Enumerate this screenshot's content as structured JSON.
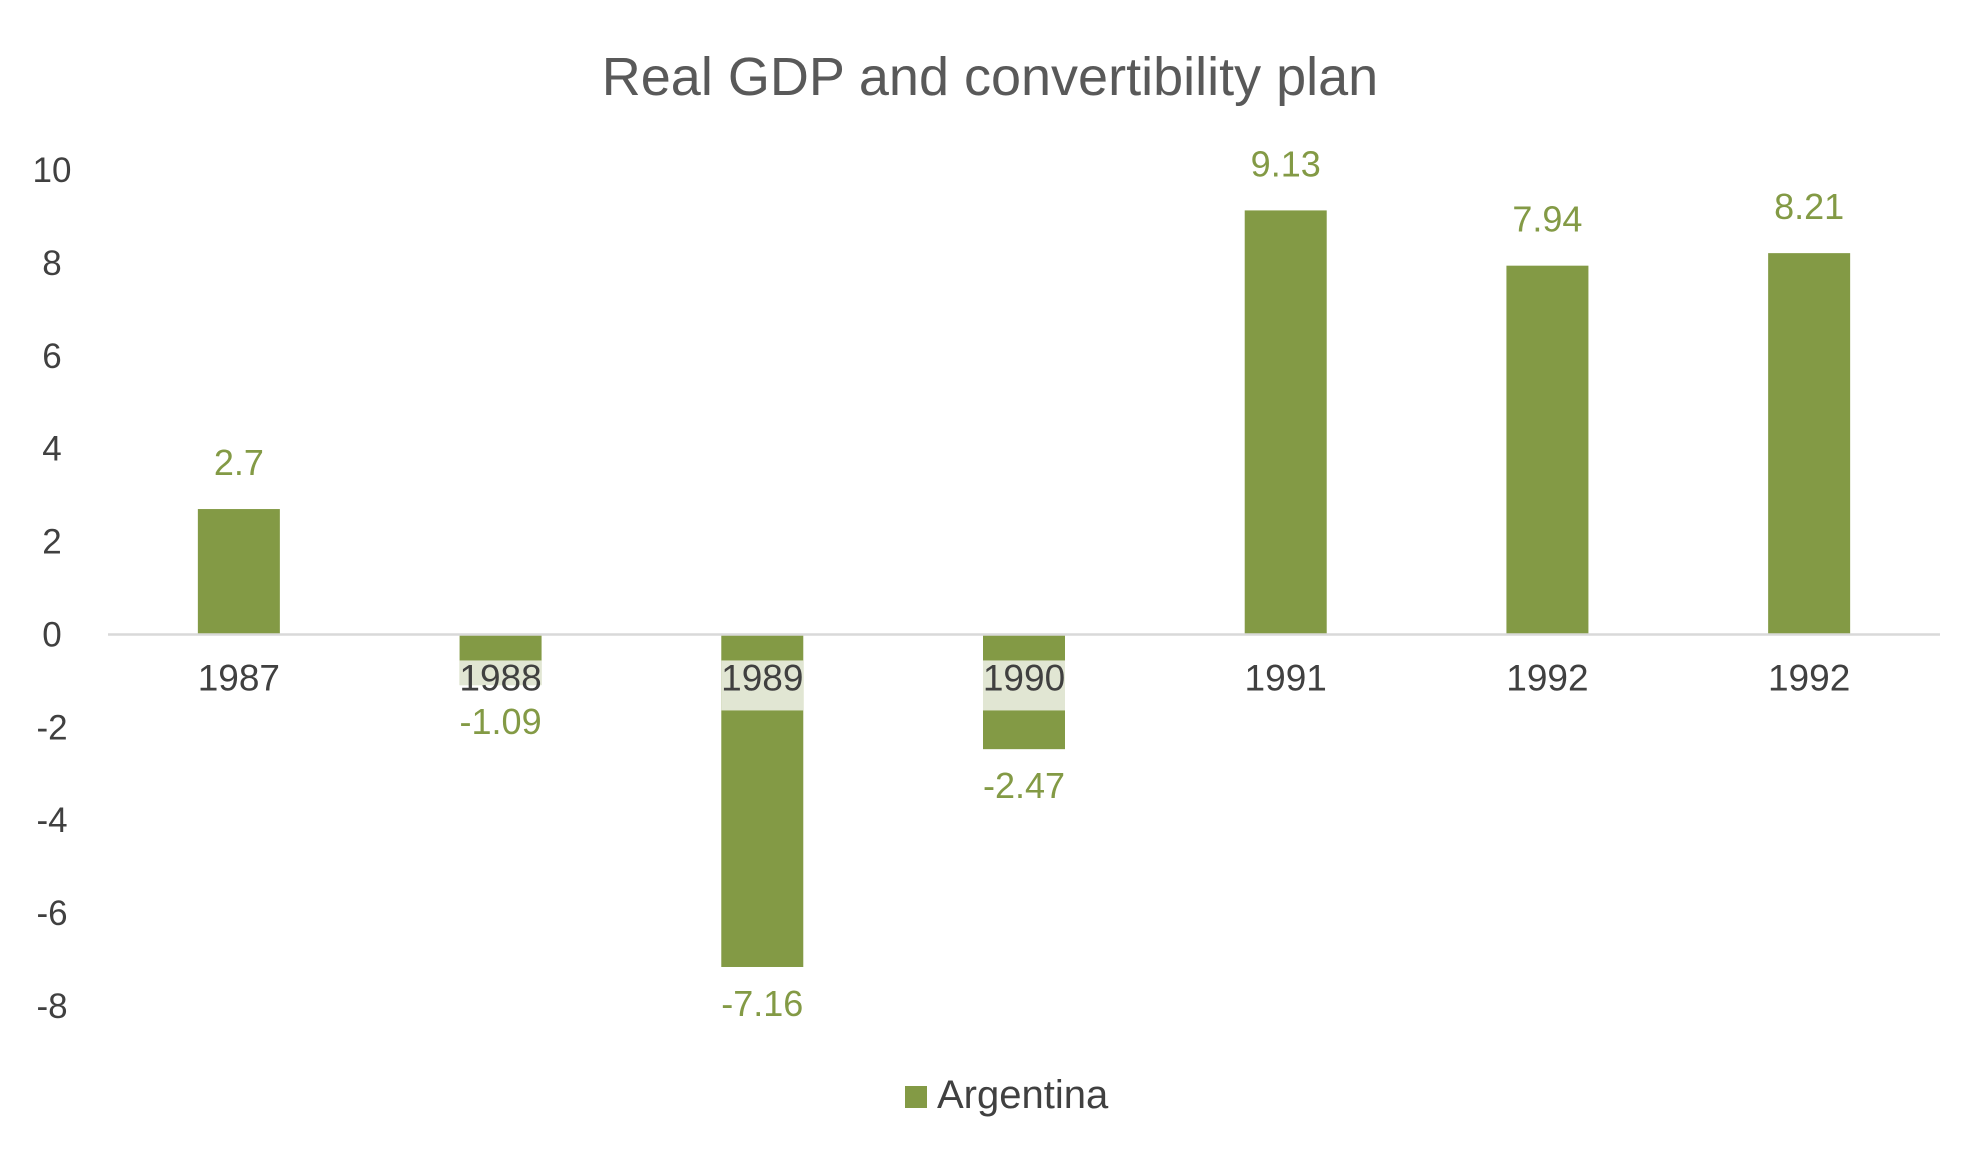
{
  "chart_data": {
    "type": "bar",
    "title": "Real GDP and convertibility plan",
    "categories": [
      "1987",
      "1988",
      "1989",
      "1990",
      "1991",
      "1992",
      "1992"
    ],
    "series": [
      {
        "name": "Argentina",
        "values": [
          2.7,
          -1.09,
          -7.16,
          -2.47,
          9.13,
          7.94,
          8.21
        ]
      }
    ],
    "data_labels": [
      "2.7",
      "-1.09",
      "-7.16",
      "-2.47",
      "9.13",
      "7.94",
      "8.21"
    ],
    "y_ticks": [
      "10",
      "8",
      "6",
      "4",
      "2",
      "0",
      "-2",
      "-4",
      "-6",
      "-8"
    ],
    "ylim": [
      -8,
      10
    ],
    "xlabel": "",
    "ylabel": "",
    "grid": false,
    "legend_position": "bottom",
    "colors": {
      "bar": "#839A45",
      "label": "#839A45",
      "category_label_background": "#E1E6D3",
      "axis": "#D9D9D9",
      "text": "#404040",
      "title": "#595959"
    }
  }
}
